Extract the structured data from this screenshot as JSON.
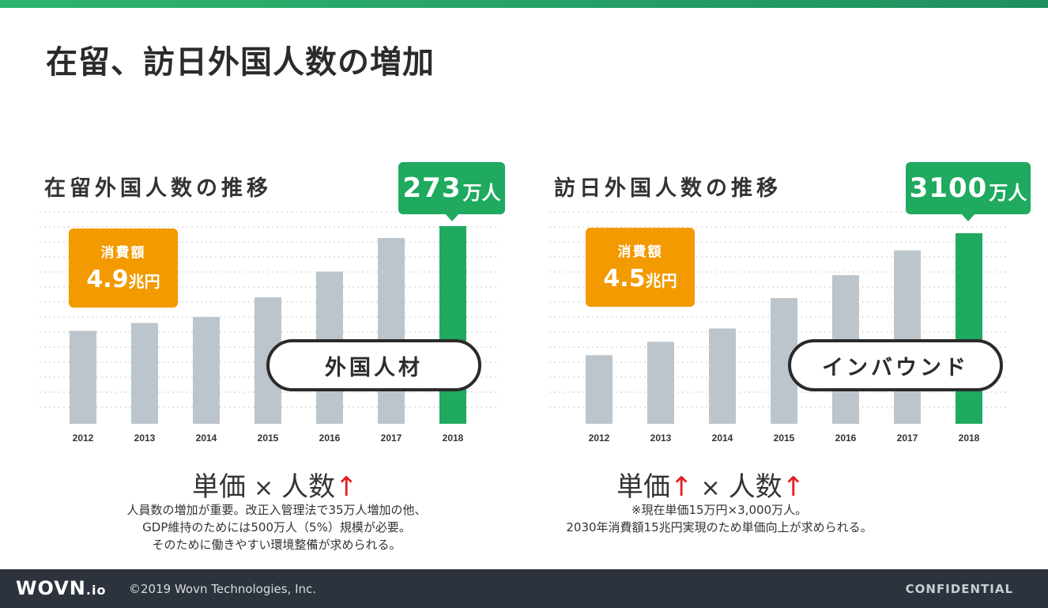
{
  "slide": {
    "title": "在留、訪日外国人数の増加"
  },
  "colors": {
    "bar": "#bcc5cc",
    "highlight": "#1faa5f",
    "spend": "#f39a00",
    "grid": "#c8c8c8",
    "arrow": "#e02020",
    "footer": "#2c333d"
  },
  "left": {
    "title": "在留外国人数の推移",
    "callout": {
      "value": "273",
      "unit": "万人"
    },
    "spend": {
      "label": "消費額",
      "amount": "4.9",
      "unit": "兆円"
    },
    "pill": "外国人材",
    "formula": {
      "part1": "単価",
      "times": "×",
      "part2": "人数",
      "arrow2": "↑"
    },
    "note": [
      "人員数の増加が重要。改正入管理法で35万人増加の他、",
      "GDP維持のためには500万人（5%）規模が必要。",
      "そのために働きやすい環境整備が求められる。"
    ],
    "chart_data": {
      "type": "bar",
      "categories": [
        "2012",
        "2013",
        "2014",
        "2015",
        "2016",
        "2017",
        "2018"
      ],
      "values": [
        47,
        51,
        54,
        64,
        77,
        94,
        100
      ],
      "highlight_index": 6,
      "ylim": [
        0,
        100
      ]
    }
  },
  "right": {
    "title": "訪日外国人数の推移",
    "callout": {
      "value": "3100",
      "unit": "万人"
    },
    "spend": {
      "label": "消費額",
      "amount": "4.5",
      "unit": "兆円"
    },
    "pill": "インバウンド",
    "formula": {
      "part1": "単価",
      "arrow1": "↑",
      "times": "×",
      "part2": "人数",
      "arrow2": "↑"
    },
    "note": [
      "※現在単価15万円×3,000万人。",
      "2030年消費額15兆円実現のため単価向上が求められる。"
    ],
    "chart_data": {
      "type": "bar",
      "categories": [
        "2012",
        "2013",
        "2014",
        "2015",
        "2016",
        "2017",
        "2018"
      ],
      "values": [
        36,
        43,
        50,
        66,
        78,
        91,
        100
      ],
      "highlight_index": 6,
      "ylim": [
        0,
        100
      ]
    }
  },
  "footer": {
    "logo": "WOVN",
    "logo_suffix": ".io",
    "copyright": "©2019 Wovn Technologies, Inc.",
    "confidential": "CONFIDENTIAL"
  }
}
